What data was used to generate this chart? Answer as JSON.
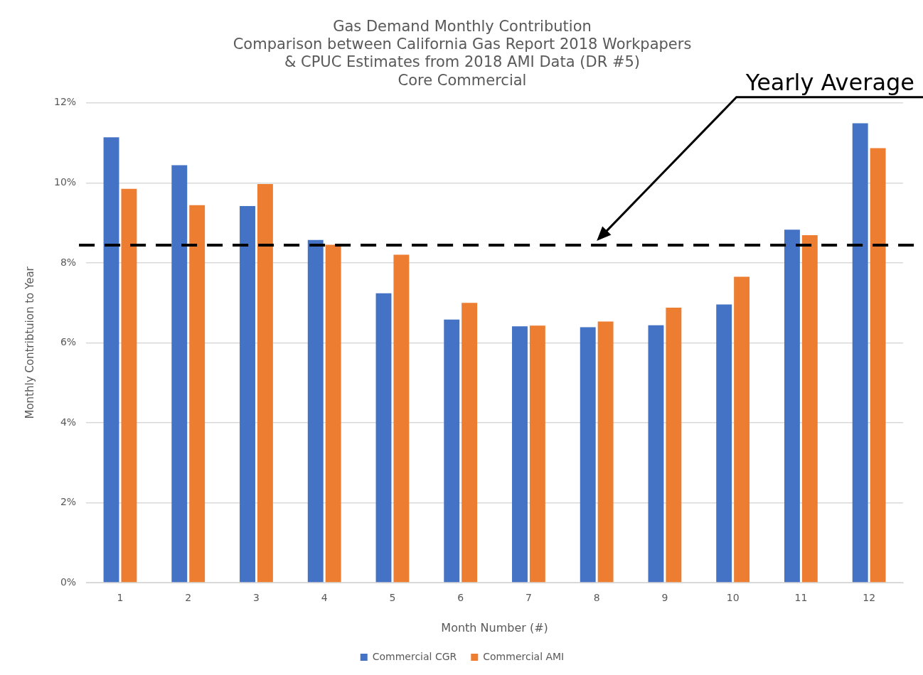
{
  "chart_data": {
    "type": "bar",
    "title": "Gas Demand Monthly Contribution\nComparison between California Gas Report 2018 Workpapers\n& CPUC Estimates from 2018 AMI Data (DR #5)\nCore Commercial",
    "xlabel": "Month Number (#)",
    "ylabel": "Monthly Contribtuion to Year",
    "categories": [
      "1",
      "2",
      "3",
      "4",
      "5",
      "6",
      "7",
      "8",
      "9",
      "10",
      "11",
      "12"
    ],
    "series": [
      {
        "name": "Commercial CGR",
        "color": "#4472c4",
        "values": [
          11.14,
          10.44,
          9.42,
          8.57,
          7.24,
          6.58,
          6.41,
          6.39,
          6.44,
          6.96,
          8.83,
          11.49
        ]
      },
      {
        "name": "Commercial AMI",
        "color": "#ed7d31",
        "values": [
          9.85,
          9.44,
          9.97,
          8.45,
          8.2,
          7.0,
          6.43,
          6.53,
          6.88,
          7.65,
          8.69,
          10.87
        ]
      }
    ],
    "ylim": [
      0,
      12
    ],
    "yticks": [
      {
        "value": 0,
        "label": "0%"
      },
      {
        "value": 2,
        "label": "2%"
      },
      {
        "value": 4,
        "label": "4%"
      },
      {
        "value": 6,
        "label": "6%"
      },
      {
        "value": 8,
        "label": "8%"
      },
      {
        "value": 10,
        "label": "10%"
      },
      {
        "value": 12,
        "label": "12%"
      }
    ],
    "grid": "y",
    "legend": "bottom",
    "annotations": [
      "Yearly Average"
    ],
    "ref_lines": [
      {
        "axis": "y",
        "value": 8.44,
        "color": "#000000",
        "line_style": "dashed"
      }
    ]
  }
}
